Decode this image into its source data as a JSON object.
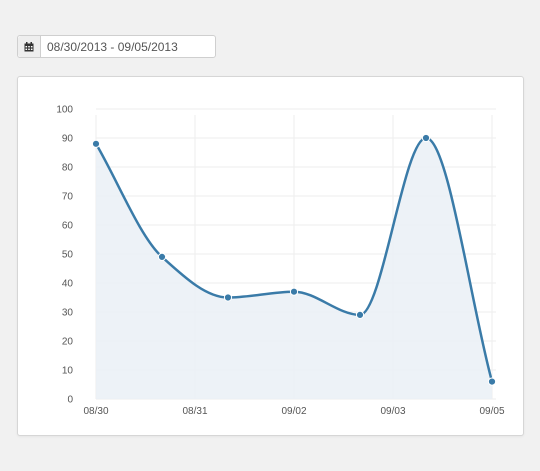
{
  "date_range": {
    "value": "08/30/2013 - 09/05/2013",
    "icon": "calendar-icon"
  },
  "colors": {
    "line": "#3a7ba8",
    "area": "#eaf0f6",
    "grid": "#eeeeee"
  },
  "chart_data": {
    "type": "area",
    "ylim": [
      0,
      100
    ],
    "yticks": [
      "0",
      "10",
      "20",
      "30",
      "40",
      "50",
      "60",
      "70",
      "80",
      "90",
      "100"
    ],
    "x_labels": [
      "08/30",
      "08/31",
      "09/02",
      "09/03",
      "09/05"
    ],
    "x_label_days": [
      0,
      1.5,
      3,
      4.5,
      6
    ],
    "series": [
      {
        "days": [
          0,
          1,
          2,
          3,
          4,
          5,
          6
        ],
        "values": [
          88,
          49,
          35,
          37,
          29,
          90,
          6
        ]
      }
    ],
    "grid": true
  }
}
